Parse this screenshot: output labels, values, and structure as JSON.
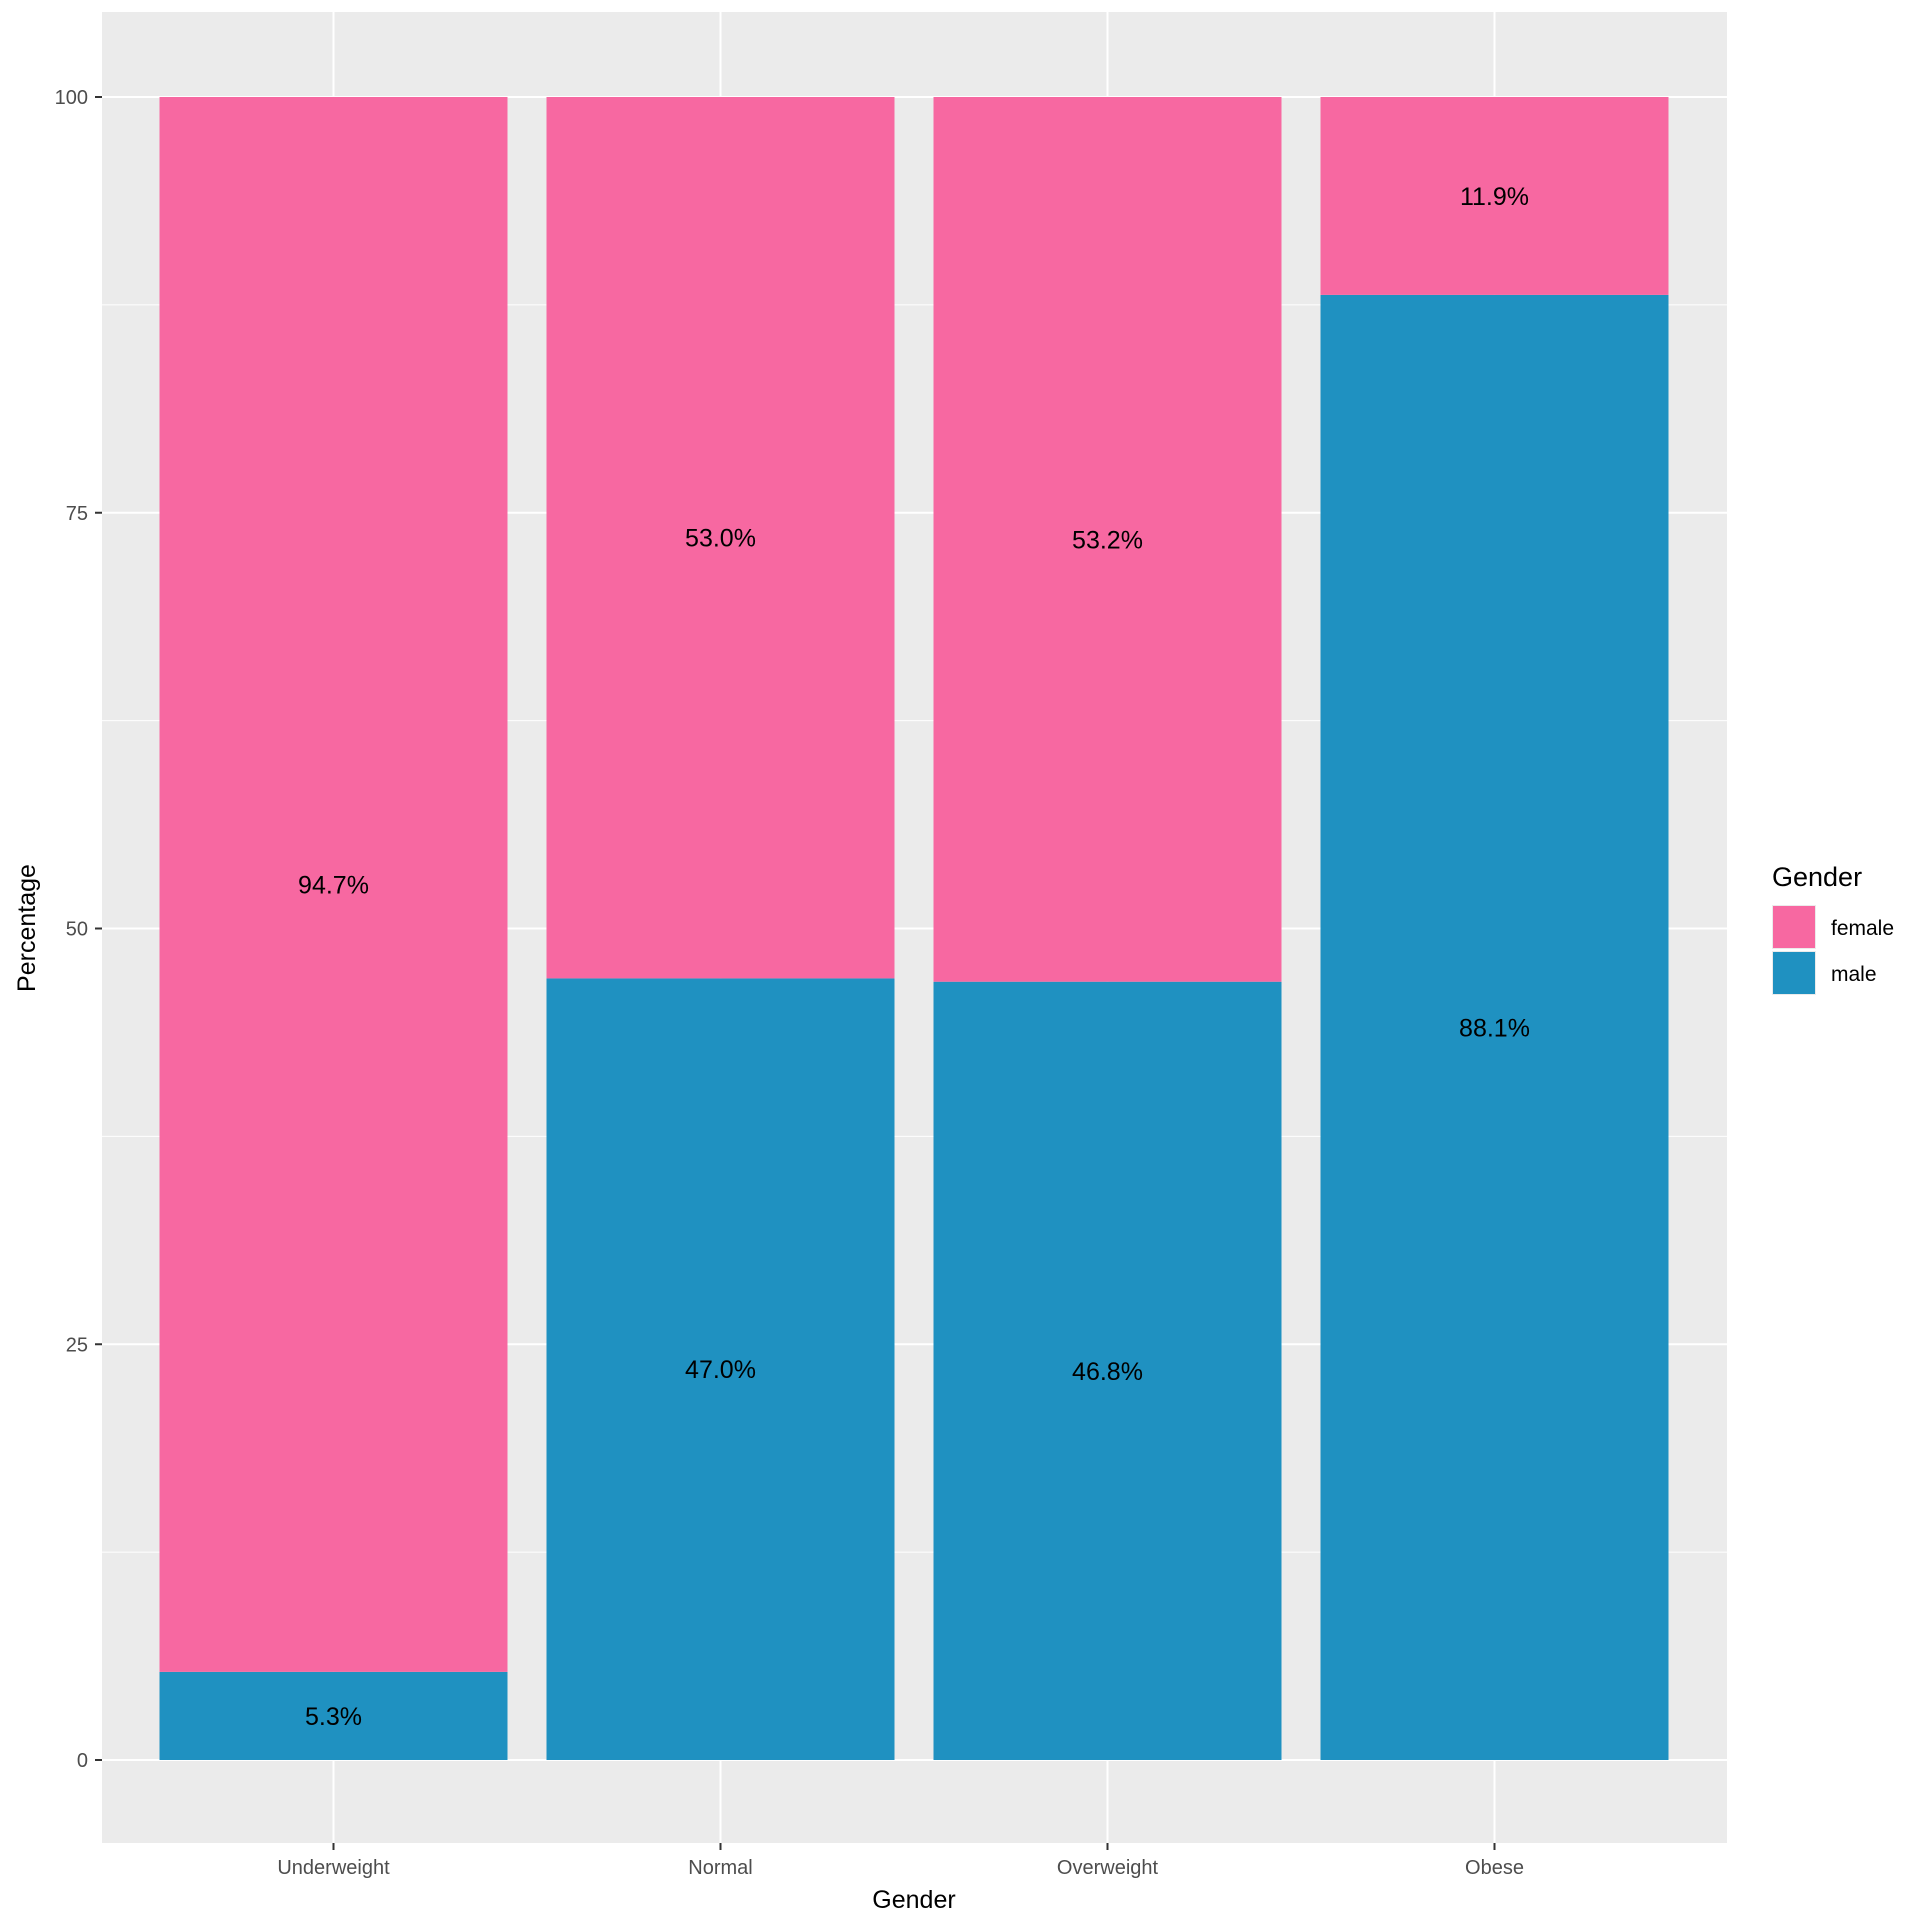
{
  "chart_data": {
    "type": "bar",
    "stacked": true,
    "title": "",
    "xlabel": "Gender",
    "ylabel": "Percentage",
    "categories": [
      "Underweight",
      "Normal",
      "Overweight",
      "Obese"
    ],
    "series": [
      {
        "name": "female",
        "color": "#F768A1",
        "values": [
          94.7,
          53.0,
          53.2,
          11.9
        ],
        "labels": [
          "94.7%",
          "53.0%",
          "53.2%",
          "11.9%"
        ]
      },
      {
        "name": "male",
        "color": "#1F91C1",
        "values": [
          5.3,
          47.0,
          46.8,
          88.1
        ],
        "labels": [
          "5.3%",
          "47.0%",
          "46.8%",
          "88.1%"
        ]
      }
    ],
    "ylim": [
      -5,
      105
    ],
    "yticks": [
      0,
      25,
      50,
      75,
      100
    ],
    "grid": true,
    "legend": {
      "title": "Gender",
      "position": "right",
      "entries": [
        "female",
        "male"
      ]
    },
    "panel_background": "#EBEBEB"
  }
}
